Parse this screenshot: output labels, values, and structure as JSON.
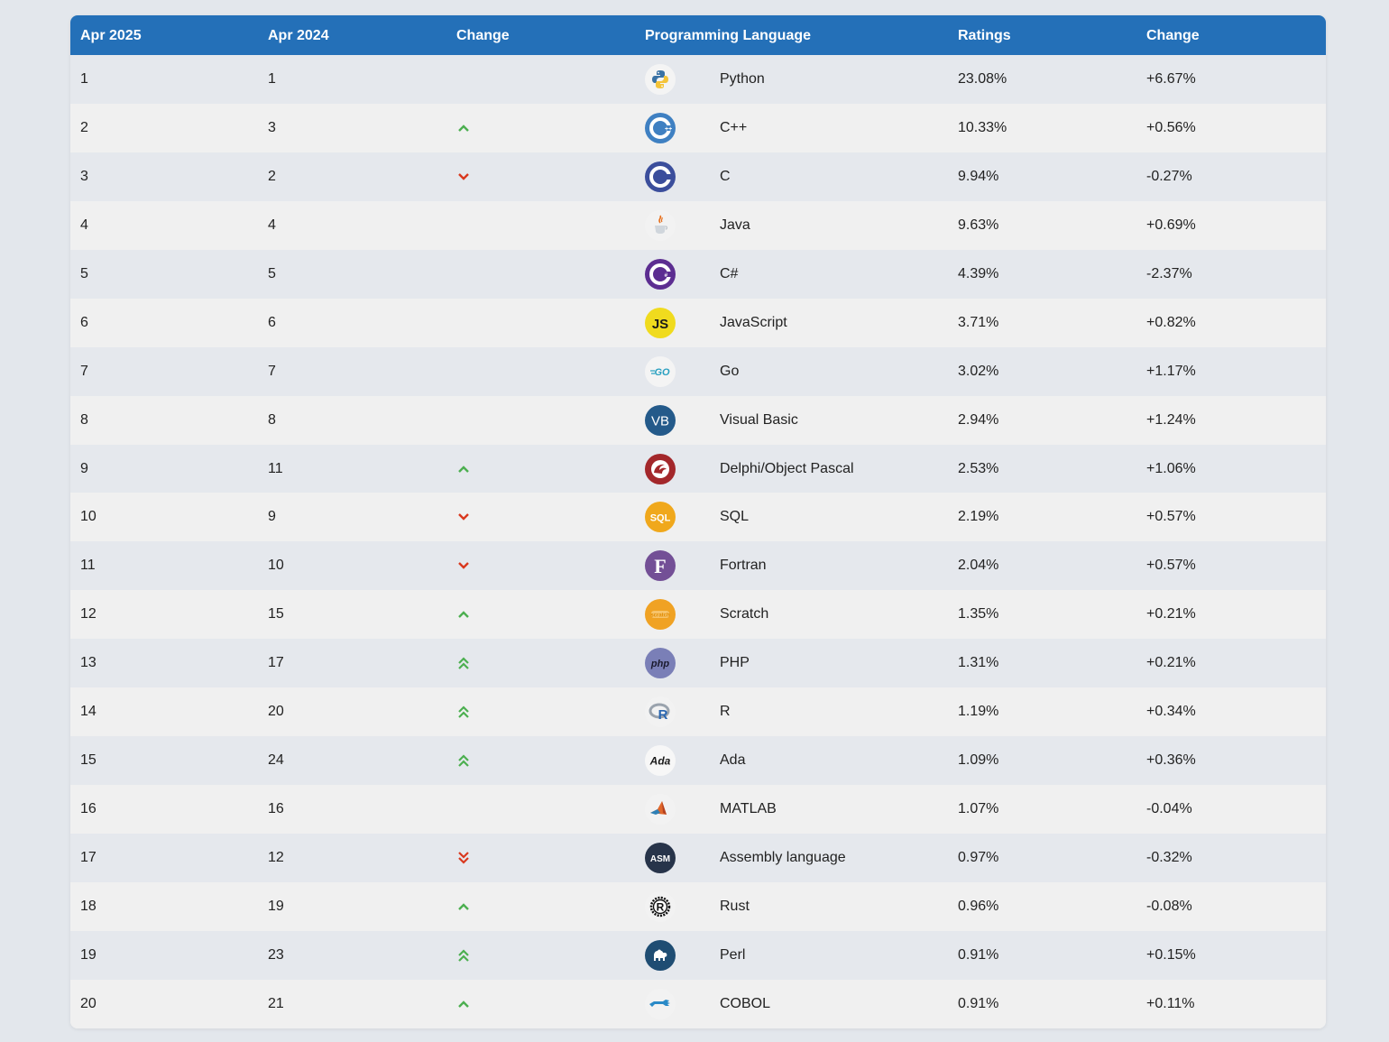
{
  "headers": [
    "Apr 2025",
    "Apr 2024",
    "Change",
    "Programming Language",
    "Ratings",
    "Change"
  ],
  "colors": {
    "header_bg": "#2470b8",
    "up": "#4caf50",
    "down": "#d9381e"
  },
  "rows": [
    {
      "rank_2025": "1",
      "rank_2024": "1",
      "trend": "none",
      "icon": "python-icon",
      "language": "Python",
      "rating": "23.08%",
      "change": "+6.67%"
    },
    {
      "rank_2025": "2",
      "rank_2024": "3",
      "trend": "up",
      "icon": "cpp-icon",
      "language": "C++",
      "rating": "10.33%",
      "change": "+0.56%"
    },
    {
      "rank_2025": "3",
      "rank_2024": "2",
      "trend": "down",
      "icon": "c-icon",
      "language": "C",
      "rating": "9.94%",
      "change": "-0.27%"
    },
    {
      "rank_2025": "4",
      "rank_2024": "4",
      "trend": "none",
      "icon": "java-icon",
      "language": "Java",
      "rating": "9.63%",
      "change": "+0.69%"
    },
    {
      "rank_2025": "5",
      "rank_2024": "5",
      "trend": "none",
      "icon": "csharp-icon",
      "language": "C#",
      "rating": "4.39%",
      "change": "-2.37%"
    },
    {
      "rank_2025": "6",
      "rank_2024": "6",
      "trend": "none",
      "icon": "javascript-icon",
      "language": "JavaScript",
      "rating": "3.71%",
      "change": "+0.82%"
    },
    {
      "rank_2025": "7",
      "rank_2024": "7",
      "trend": "none",
      "icon": "go-icon",
      "language": "Go",
      "rating": "3.02%",
      "change": "+1.17%"
    },
    {
      "rank_2025": "8",
      "rank_2024": "8",
      "trend": "none",
      "icon": "visual-basic-icon",
      "language": "Visual Basic",
      "rating": "2.94%",
      "change": "+1.24%"
    },
    {
      "rank_2025": "9",
      "rank_2024": "11",
      "trend": "up",
      "icon": "delphi-icon",
      "language": "Delphi/Object Pascal",
      "rating": "2.53%",
      "change": "+1.06%"
    },
    {
      "rank_2025": "10",
      "rank_2024": "9",
      "trend": "down",
      "icon": "sql-icon",
      "language": "SQL",
      "rating": "2.19%",
      "change": "+0.57%"
    },
    {
      "rank_2025": "11",
      "rank_2024": "10",
      "trend": "down",
      "icon": "fortran-icon",
      "language": "Fortran",
      "rating": "2.04%",
      "change": "+0.57%"
    },
    {
      "rank_2025": "12",
      "rank_2024": "15",
      "trend": "up",
      "icon": "scratch-icon",
      "language": "Scratch",
      "rating": "1.35%",
      "change": "+0.21%"
    },
    {
      "rank_2025": "13",
      "rank_2024": "17",
      "trend": "double-up",
      "icon": "php-icon",
      "language": "PHP",
      "rating": "1.31%",
      "change": "+0.21%"
    },
    {
      "rank_2025": "14",
      "rank_2024": "20",
      "trend": "double-up",
      "icon": "r-icon",
      "language": "R",
      "rating": "1.19%",
      "change": "+0.34%"
    },
    {
      "rank_2025": "15",
      "rank_2024": "24",
      "trend": "double-up",
      "icon": "ada-icon",
      "language": "Ada",
      "rating": "1.09%",
      "change": "+0.36%"
    },
    {
      "rank_2025": "16",
      "rank_2024": "16",
      "trend": "none",
      "icon": "matlab-icon",
      "language": "MATLAB",
      "rating": "1.07%",
      "change": "-0.04%"
    },
    {
      "rank_2025": "17",
      "rank_2024": "12",
      "trend": "double-down",
      "icon": "assembly-icon",
      "language": "Assembly language",
      "rating": "0.97%",
      "change": "-0.32%"
    },
    {
      "rank_2025": "18",
      "rank_2024": "19",
      "trend": "up",
      "icon": "rust-icon",
      "language": "Rust",
      "rating": "0.96%",
      "change": "-0.08%"
    },
    {
      "rank_2025": "19",
      "rank_2024": "23",
      "trend": "double-up",
      "icon": "perl-icon",
      "language": "Perl",
      "rating": "0.91%",
      "change": "+0.15%"
    },
    {
      "rank_2025": "20",
      "rank_2024": "21",
      "trend": "up",
      "icon": "cobol-icon",
      "language": "COBOL",
      "rating": "0.91%",
      "change": "+0.11%"
    }
  ]
}
